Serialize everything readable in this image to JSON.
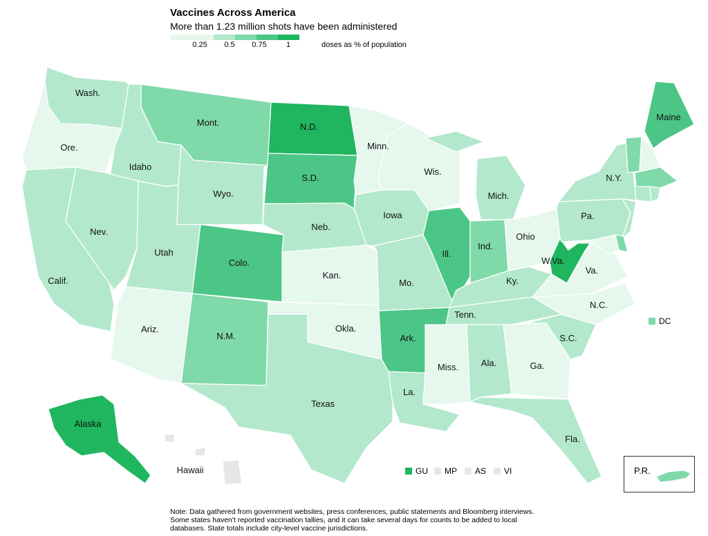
{
  "header": {
    "title": "Vaccines Across America",
    "subtitle": "More than 1.23 million shots have been administered"
  },
  "legend": {
    "ticks": [
      "0.25",
      "0.5",
      "0.75",
      "1"
    ],
    "unit": "doses as % of population",
    "colors": [
      "#e6f7ee",
      "#b3e8cc",
      "#7fd9a9",
      "#4cc686",
      "#1fb65f"
    ]
  },
  "states": [
    {
      "id": "WA",
      "label": "Wash.",
      "level": 1
    },
    {
      "id": "OR",
      "label": "Ore.",
      "level": 0
    },
    {
      "id": "CA",
      "label": "Calif.",
      "level": 1
    },
    {
      "id": "ID",
      "label": "Idaho",
      "level": 1
    },
    {
      "id": "NV",
      "label": "Nev.",
      "level": 1
    },
    {
      "id": "MT",
      "label": "Mont.",
      "level": 2
    },
    {
      "id": "WY",
      "label": "Wyo.",
      "level": 1
    },
    {
      "id": "UT",
      "label": "Utah",
      "level": 1
    },
    {
      "id": "AZ",
      "label": "Ariz.",
      "level": 0
    },
    {
      "id": "CO",
      "label": "Colo.",
      "level": 3
    },
    {
      "id": "NM",
      "label": "N.M.",
      "level": 2
    },
    {
      "id": "ND",
      "label": "N.D.",
      "level": 4
    },
    {
      "id": "SD",
      "label": "S.D.",
      "level": 3
    },
    {
      "id": "NE",
      "label": "Neb.",
      "level": 1
    },
    {
      "id": "KS",
      "label": "Kan.",
      "level": 0
    },
    {
      "id": "OK",
      "label": "Okla.",
      "level": 0
    },
    {
      "id": "TX",
      "label": "Texas",
      "level": 1
    },
    {
      "id": "MN",
      "label": "Minn.",
      "level": 0
    },
    {
      "id": "IA",
      "label": "Iowa",
      "level": 1
    },
    {
      "id": "MO",
      "label": "Mo.",
      "level": 1
    },
    {
      "id": "AR",
      "label": "Ark.",
      "level": 3
    },
    {
      "id": "LA",
      "label": "La.",
      "level": 1
    },
    {
      "id": "WI",
      "label": "Wis.",
      "level": 0
    },
    {
      "id": "IL",
      "label": "Ill.",
      "level": 3
    },
    {
      "id": "MI",
      "label": "Mich.",
      "level": 1
    },
    {
      "id": "IN",
      "label": "Ind.",
      "level": 2
    },
    {
      "id": "OH",
      "label": "Ohio",
      "level": 0
    },
    {
      "id": "KY",
      "label": "Ky.",
      "level": 1
    },
    {
      "id": "TN",
      "label": "Tenn.",
      "level": 1
    },
    {
      "id": "MS",
      "label": "Miss.",
      "level": 0
    },
    {
      "id": "AL",
      "label": "Ala.",
      "level": 1
    },
    {
      "id": "GA",
      "label": "Ga.",
      "level": 0
    },
    {
      "id": "FL",
      "label": "Fla.",
      "level": 1
    },
    {
      "id": "SC",
      "label": "S.C.",
      "level": 1
    },
    {
      "id": "NC",
      "label": "N.C.",
      "level": 0
    },
    {
      "id": "VA",
      "label": "Va.",
      "level": 0
    },
    {
      "id": "WV",
      "label": "W.Va.",
      "level": 4
    },
    {
      "id": "PA",
      "label": "Pa.",
      "level": 1
    },
    {
      "id": "NY",
      "label": "N.Y.",
      "level": 1
    },
    {
      "id": "ME",
      "label": "Maine",
      "level": 3
    },
    {
      "id": "VT",
      "label": "",
      "level": 2
    },
    {
      "id": "NH",
      "label": "",
      "level": 0
    },
    {
      "id": "MA",
      "label": "",
      "level": 2
    },
    {
      "id": "CT",
      "label": "",
      "level": 1
    },
    {
      "id": "RI",
      "label": "",
      "level": 1
    },
    {
      "id": "NJ",
      "label": "",
      "level": 1
    },
    {
      "id": "DE",
      "label": "",
      "level": 2
    },
    {
      "id": "MD",
      "label": "",
      "level": 0
    },
    {
      "id": "AK",
      "label": "Alaska",
      "level": 4
    },
    {
      "id": "HI",
      "label": "Hawaii",
      "level": -1
    }
  ],
  "territories": [
    {
      "id": "DC",
      "label": "DC",
      "level": 2
    },
    {
      "id": "GU",
      "label": "GU",
      "level": 4
    },
    {
      "id": "MP",
      "label": "MP",
      "level": -1
    },
    {
      "id": "AS",
      "label": "AS",
      "level": -1
    },
    {
      "id": "VI",
      "label": "VI",
      "level": -1
    },
    {
      "id": "PR",
      "label": "P.R.",
      "level": 2
    }
  ],
  "note": "Note: Data gathered from government websites, press conferences, public statements and Bloomberg interviews. Some states haven't reported vaccination tallies, and it can take several days for counts to be added to local databases. State totals include city-level vaccine jurisdictions."
}
